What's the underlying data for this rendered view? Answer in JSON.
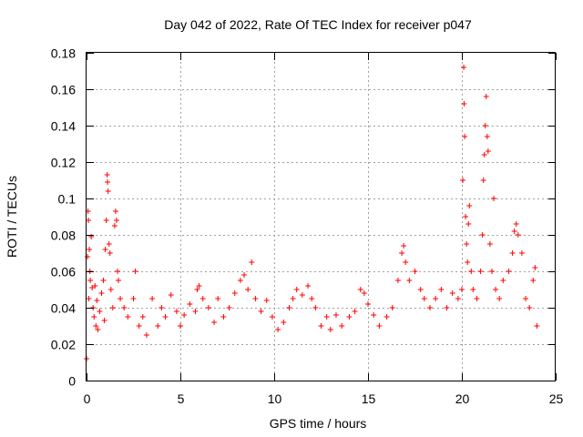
{
  "chart_data": {
    "type": "scatter",
    "title": "Day 042 of 2022, Rate Of TEC Index for receiver p047",
    "xlabel": "GPS time / hours",
    "ylabel": "ROTI / TECUs",
    "xlim": [
      0,
      25
    ],
    "ylim": [
      0,
      0.18
    ],
    "xticks": [
      0,
      5,
      10,
      15,
      20,
      25
    ],
    "xtick_labels": [
      "0",
      "5",
      "10",
      "15",
      "20",
      "25"
    ],
    "yticks": [
      0,
      0.02,
      0.04,
      0.06,
      0.08,
      0.1,
      0.12,
      0.14,
      0.16,
      0.18
    ],
    "ytick_labels": [
      "0",
      "0.02",
      "0.04",
      "0.06",
      "0.08",
      "0.1",
      "0.12",
      "0.14",
      "0.16",
      "0.18"
    ],
    "grid": true,
    "marker": "+",
    "color": "#ff0000",
    "series": [
      {
        "name": "ROTI",
        "points": [
          [
            0.0,
            0.012
          ],
          [
            0.05,
            0.068
          ],
          [
            0.08,
            0.093
          ],
          [
            0.1,
            0.088
          ],
          [
            0.12,
            0.045
          ],
          [
            0.15,
            0.072
          ],
          [
            0.18,
            0.06
          ],
          [
            0.2,
            0.055
          ],
          [
            0.25,
            0.079
          ],
          [
            0.3,
            0.051
          ],
          [
            0.35,
            0.04
          ],
          [
            0.4,
            0.035
          ],
          [
            0.45,
            0.052
          ],
          [
            0.5,
            0.03
          ],
          [
            0.55,
            0.044
          ],
          [
            0.6,
            0.028
          ],
          [
            0.7,
            0.038
          ],
          [
            0.8,
            0.048
          ],
          [
            0.9,
            0.055
          ],
          [
            0.95,
            0.033
          ],
          [
            1.0,
            0.072
          ],
          [
            1.05,
            0.088
          ],
          [
            1.1,
            0.113
          ],
          [
            1.12,
            0.109
          ],
          [
            1.15,
            0.104
          ],
          [
            1.2,
            0.075
          ],
          [
            1.25,
            0.07
          ],
          [
            1.3,
            0.05
          ],
          [
            1.4,
            0.04
          ],
          [
            1.5,
            0.085
          ],
          [
            1.55,
            0.093
          ],
          [
            1.6,
            0.088
          ],
          [
            1.65,
            0.06
          ],
          [
            1.7,
            0.055
          ],
          [
            1.8,
            0.045
          ],
          [
            2.0,
            0.04
          ],
          [
            2.2,
            0.035
          ],
          [
            2.5,
            0.045
          ],
          [
            2.6,
            0.06
          ],
          [
            2.8,
            0.03
          ],
          [
            3.0,
            0.035
          ],
          [
            3.2,
            0.025
          ],
          [
            3.5,
            0.045
          ],
          [
            3.8,
            0.03
          ],
          [
            4.0,
            0.04
          ],
          [
            4.2,
            0.035
          ],
          [
            4.5,
            0.047
          ],
          [
            4.8,
            0.038
          ],
          [
            5.0,
            0.03
          ],
          [
            5.2,
            0.036
          ],
          [
            5.5,
            0.042
          ],
          [
            5.8,
            0.038
          ],
          [
            5.9,
            0.05
          ],
          [
            6.0,
            0.052
          ],
          [
            6.2,
            0.045
          ],
          [
            6.5,
            0.04
          ],
          [
            6.8,
            0.032
          ],
          [
            7.0,
            0.045
          ],
          [
            7.3,
            0.035
          ],
          [
            7.6,
            0.04
          ],
          [
            7.9,
            0.048
          ],
          [
            8.2,
            0.055
          ],
          [
            8.4,
            0.058
          ],
          [
            8.6,
            0.05
          ],
          [
            8.8,
            0.065
          ],
          [
            9.0,
            0.045
          ],
          [
            9.3,
            0.038
          ],
          [
            9.6,
            0.044
          ],
          [
            9.9,
            0.035
          ],
          [
            10.2,
            0.028
          ],
          [
            10.5,
            0.032
          ],
          [
            10.8,
            0.04
          ],
          [
            11.0,
            0.045
          ],
          [
            11.2,
            0.05
          ],
          [
            11.5,
            0.047
          ],
          [
            11.8,
            0.052
          ],
          [
            12.0,
            0.045
          ],
          [
            12.2,
            0.04
          ],
          [
            12.5,
            0.03
          ],
          [
            12.8,
            0.035
          ],
          [
            13.0,
            0.028
          ],
          [
            13.3,
            0.036
          ],
          [
            13.6,
            0.03
          ],
          [
            14.0,
            0.035
          ],
          [
            14.3,
            0.038
          ],
          [
            14.6,
            0.05
          ],
          [
            14.8,
            0.048
          ],
          [
            15.0,
            0.042
          ],
          [
            15.3,
            0.036
          ],
          [
            15.6,
            0.03
          ],
          [
            16.0,
            0.035
          ],
          [
            16.3,
            0.04
          ],
          [
            16.6,
            0.055
          ],
          [
            16.8,
            0.07
          ],
          [
            16.9,
            0.074
          ],
          [
            17.0,
            0.065
          ],
          [
            17.2,
            0.055
          ],
          [
            17.5,
            0.06
          ],
          [
            17.8,
            0.05
          ],
          [
            18.0,
            0.045
          ],
          [
            18.3,
            0.04
          ],
          [
            18.6,
            0.045
          ],
          [
            18.9,
            0.05
          ],
          [
            19.2,
            0.04
          ],
          [
            19.5,
            0.048
          ],
          [
            19.8,
            0.045
          ],
          [
            20.0,
            0.05
          ],
          [
            20.05,
            0.11
          ],
          [
            20.1,
            0.172
          ],
          [
            20.12,
            0.152
          ],
          [
            20.15,
            0.134
          ],
          [
            20.2,
            0.09
          ],
          [
            20.25,
            0.075
          ],
          [
            20.3,
            0.065
          ],
          [
            20.35,
            0.086
          ],
          [
            20.4,
            0.096
          ],
          [
            20.5,
            0.06
          ],
          [
            20.6,
            0.05
          ],
          [
            20.8,
            0.045
          ],
          [
            21.0,
            0.06
          ],
          [
            21.1,
            0.08
          ],
          [
            21.15,
            0.11
          ],
          [
            21.2,
            0.124
          ],
          [
            21.25,
            0.14
          ],
          [
            21.3,
            0.156
          ],
          [
            21.35,
            0.134
          ],
          [
            21.4,
            0.126
          ],
          [
            21.5,
            0.075
          ],
          [
            21.6,
            0.06
          ],
          [
            21.7,
            0.1
          ],
          [
            21.8,
            0.05
          ],
          [
            22.0,
            0.045
          ],
          [
            22.2,
            0.055
          ],
          [
            22.5,
            0.06
          ],
          [
            22.7,
            0.07
          ],
          [
            22.8,
            0.082
          ],
          [
            22.9,
            0.086
          ],
          [
            23.0,
            0.08
          ],
          [
            23.2,
            0.07
          ],
          [
            23.4,
            0.045
          ],
          [
            23.6,
            0.04
          ],
          [
            23.8,
            0.055
          ],
          [
            23.9,
            0.062
          ],
          [
            24.0,
            0.03
          ]
        ]
      }
    ]
  }
}
